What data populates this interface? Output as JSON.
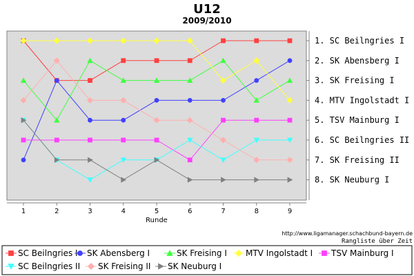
{
  "chart_data": {
    "type": "line",
    "title": "U12",
    "subtitle": "2009/2010",
    "xlabel": "Runde",
    "x": [
      1,
      2,
      3,
      4,
      5,
      6,
      7,
      8,
      9
    ],
    "ylim": [
      8,
      1
    ],
    "y_inverted": true,
    "grid": false,
    "legend_position": "bottom",
    "rank_labels": [
      "1. SC Beilngries I",
      "2. SK Abensberg I",
      "3. SK Freising I",
      "4. MTV Ingolstadt I",
      "5. TSV Mainburg I",
      "6. SC Beilngries II",
      "7. SK Freising II",
      "8. SK Neuburg I"
    ],
    "footer_url": "http://www.ligamanager.schachbund-bayern.de",
    "footer_note": "Rangliste über Zeit",
    "series": [
      {
        "name": "SC Beilngries I",
        "color": "#ff4040",
        "marker": "square",
        "values": [
          1,
          3,
          3,
          2,
          2,
          2,
          1,
          1,
          1
        ]
      },
      {
        "name": "SK Abensberg I",
        "color": "#4040ff",
        "marker": "circle",
        "values": [
          7,
          3,
          5,
          5,
          4,
          4,
          4,
          3,
          2
        ]
      },
      {
        "name": "SK Freising I",
        "color": "#40ff40",
        "marker": "triangle-up",
        "values": [
          3,
          5,
          2,
          3,
          3,
          3,
          2,
          4,
          3
        ]
      },
      {
        "name": "MTV Ingolstadt I",
        "color": "#ffff40",
        "marker": "diamond",
        "values": [
          1,
          1,
          1,
          1,
          1,
          1,
          3,
          2,
          4
        ]
      },
      {
        "name": "TSV Mainburg I",
        "color": "#ff40ff",
        "marker": "square",
        "values": [
          6,
          6,
          6,
          6,
          6,
          7,
          5,
          5,
          5
        ]
      },
      {
        "name": "SC Beilngries II",
        "color": "#40ffff",
        "marker": "triangle-down",
        "values": [
          5,
          7,
          8,
          7,
          7,
          6,
          7,
          6,
          6
        ]
      },
      {
        "name": "SK Freising II",
        "color": "#ffafaf",
        "marker": "diamond",
        "values": [
          4,
          2,
          4,
          4,
          5,
          5,
          6,
          7,
          7
        ]
      },
      {
        "name": "SK Neuburg I",
        "color": "#808080",
        "marker": "triangle-right",
        "values": [
          5,
          7,
          7,
          8,
          7,
          8,
          8,
          8,
          8
        ]
      }
    ]
  }
}
